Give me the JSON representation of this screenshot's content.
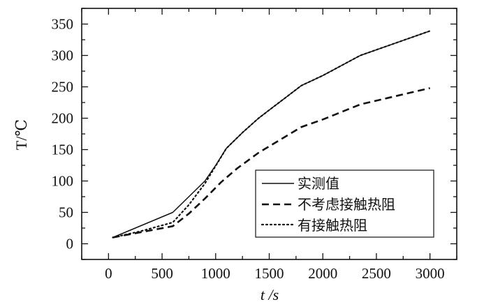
{
  "chart_data": {
    "type": "line",
    "xlabel": "t /s",
    "ylabel": "T/℃",
    "xlim": [
      -250,
      3250
    ],
    "ylim": [
      -25,
      375
    ],
    "xticks": [
      0,
      500,
      1000,
      1500,
      2000,
      2500,
      3000
    ],
    "yticks": [
      0,
      50,
      100,
      150,
      200,
      250,
      300,
      350
    ],
    "x_minor_step": 250,
    "y_minor_step": 25,
    "grid": false,
    "legend_position": "bottom-right",
    "series": [
      {
        "name": "实测值",
        "style": "solid",
        "color": "#111111",
        "points": [
          [
            40,
            10
          ],
          [
            600,
            50
          ],
          [
            750,
            75
          ],
          [
            900,
            100
          ],
          [
            1000,
            125
          ],
          [
            1100,
            152
          ],
          [
            1250,
            177
          ],
          [
            1400,
            200
          ],
          [
            1600,
            226
          ],
          [
            1800,
            252
          ],
          [
            2000,
            268
          ],
          [
            2350,
            300
          ],
          [
            2650,
            318
          ],
          [
            3000,
            339
          ]
        ]
      },
      {
        "name": "不考虑接触热阻",
        "style": "dashed",
        "color": "#111111",
        "points": [
          [
            40,
            10
          ],
          [
            600,
            28
          ],
          [
            750,
            48
          ],
          [
            900,
            72
          ],
          [
            1050,
            98
          ],
          [
            1200,
            120
          ],
          [
            1400,
            145
          ],
          [
            1800,
            186
          ],
          [
            2000,
            198
          ],
          [
            2350,
            222
          ],
          [
            2600,
            232
          ],
          [
            3000,
            248
          ]
        ]
      },
      {
        "name": "有接触热阻",
        "style": "dotted",
        "color": "#111111",
        "points": [
          [
            40,
            10
          ],
          [
            300,
            20
          ],
          [
            600,
            34
          ],
          [
            750,
            62
          ],
          [
            900,
            96
          ],
          [
            1000,
            124
          ],
          [
            1100,
            152
          ],
          [
            1250,
            177
          ],
          [
            1400,
            200
          ],
          [
            1600,
            226
          ],
          [
            1800,
            252
          ],
          [
            2000,
            268
          ],
          [
            2350,
            300
          ],
          [
            2650,
            318
          ],
          [
            3000,
            339
          ]
        ]
      }
    ]
  }
}
